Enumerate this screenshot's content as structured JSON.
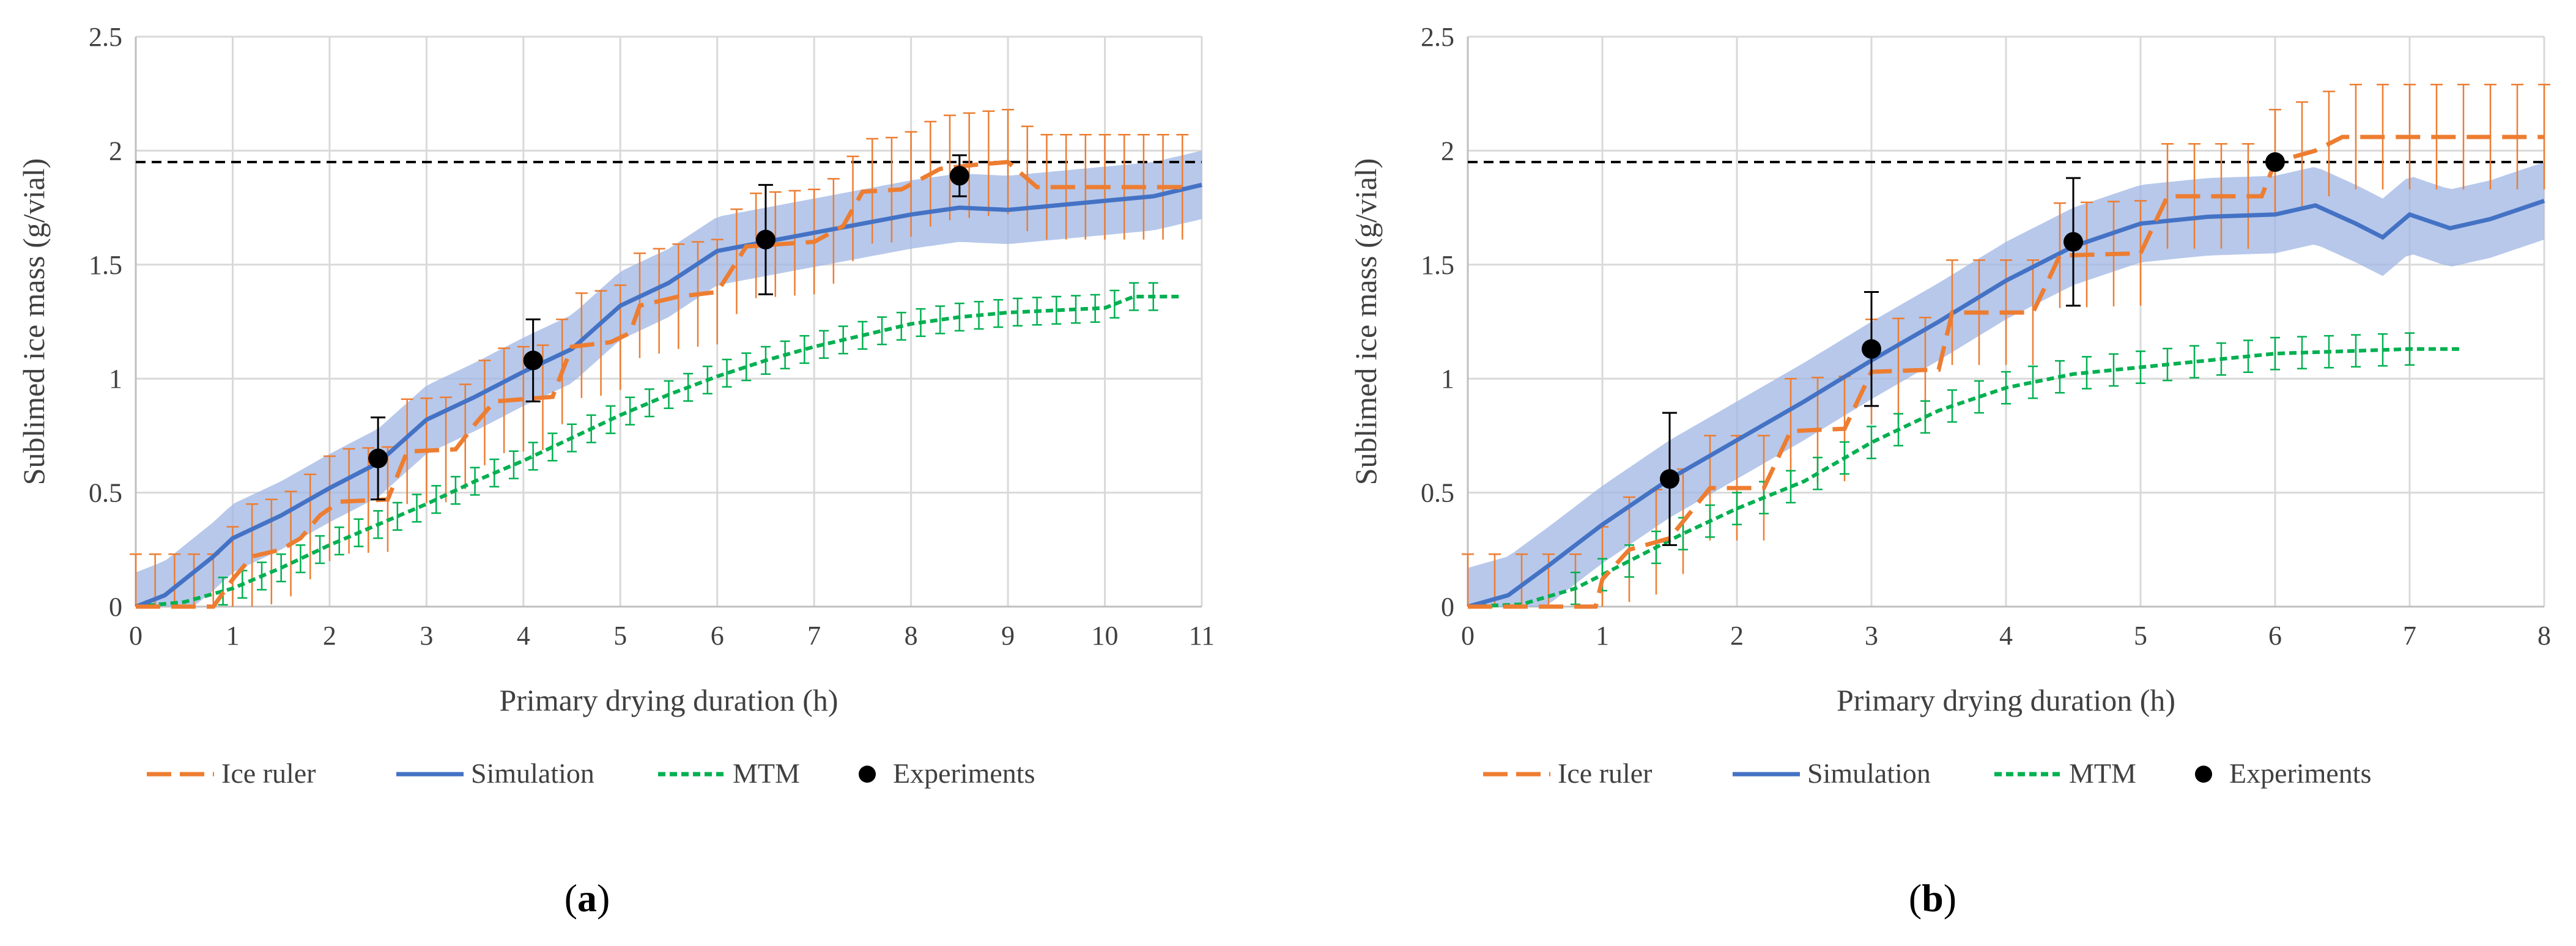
{
  "chart_data": [
    {
      "type": "line",
      "panel": "a",
      "panel_label": {
        "open": "(",
        "letter": "a",
        "close": ")"
      },
      "xlabel": "Primary drying duration (h)",
      "ylabel": "Sublimed ice mass (g/vial)",
      "xlim": [
        0,
        11
      ],
      "ylim": [
        0,
        2.5
      ],
      "x_ticks": [
        "0",
        "1",
        "2",
        "3",
        "4",
        "5",
        "6",
        "7",
        "8",
        "9",
        "10",
        "11"
      ],
      "y_ticks": [
        "0",
        "0.5",
        "1",
        "1.5",
        "2",
        "2.5"
      ],
      "grid": true,
      "reference_line": {
        "y": 1.95,
        "style": "dashed",
        "color": "#000000"
      },
      "legend": [
        {
          "name": "Ice ruler",
          "color": "#ED7D31",
          "style": "long-dash"
        },
        {
          "name": "Simulation",
          "color": "#4472C4",
          "style": "solid"
        },
        {
          "name": "MTM",
          "color": "#00B050",
          "style": "short-dash"
        },
        {
          "name": "Experiments",
          "color": "#000000",
          "style": "marker"
        }
      ],
      "series": [
        {
          "name": "Ice ruler",
          "color": "#ED7D31",
          "error": 0.23,
          "points": [
            [
              0,
              0
            ],
            [
              0.8,
              0
            ],
            [
              1.0,
              0.12
            ],
            [
              1.2,
              0.22
            ],
            [
              1.5,
              0.25
            ],
            [
              1.7,
              0.3
            ],
            [
              1.9,
              0.4
            ],
            [
              2.1,
              0.46
            ],
            [
              2.6,
              0.47
            ],
            [
              2.8,
              0.68
            ],
            [
              3.3,
              0.69
            ],
            [
              3.5,
              0.8
            ],
            [
              3.7,
              0.9
            ],
            [
              4.3,
              0.92
            ],
            [
              4.5,
              1.14
            ],
            [
              4.9,
              1.16
            ],
            [
              5.1,
              1.2
            ],
            [
              5.2,
              1.32
            ],
            [
              5.6,
              1.36
            ],
            [
              6.0,
              1.38
            ],
            [
              6.3,
              1.58
            ],
            [
              7.0,
              1.6
            ],
            [
              7.3,
              1.67
            ],
            [
              7.5,
              1.82
            ],
            [
              7.9,
              1.83
            ],
            [
              8.3,
              1.92
            ],
            [
              8.7,
              1.94
            ],
            [
              9.0,
              1.95
            ],
            [
              9.3,
              1.84
            ],
            [
              10.9,
              1.84
            ]
          ]
        },
        {
          "name": "Simulation",
          "color": "#4472C4",
          "band": 0.15,
          "points": [
            [
              0,
              0
            ],
            [
              0.3,
              0.05
            ],
            [
              0.8,
              0.22
            ],
            [
              1.0,
              0.3
            ],
            [
              1.5,
              0.4
            ],
            [
              2.0,
              0.52
            ],
            [
              2.5,
              0.63
            ],
            [
              3.0,
              0.82
            ],
            [
              3.5,
              0.92
            ],
            [
              4.0,
              1.03
            ],
            [
              4.5,
              1.13
            ],
            [
              5.0,
              1.32
            ],
            [
              5.5,
              1.42
            ],
            [
              6.0,
              1.56
            ],
            [
              6.5,
              1.6
            ],
            [
              7.0,
              1.64
            ],
            [
              7.5,
              1.68
            ],
            [
              8.0,
              1.72
            ],
            [
              8.5,
              1.75
            ],
            [
              9.0,
              1.74
            ],
            [
              9.5,
              1.76
            ],
            [
              10.0,
              1.78
            ],
            [
              10.5,
              1.8
            ],
            [
              11.0,
              1.85
            ]
          ]
        },
        {
          "name": "MTM",
          "color": "#00B050",
          "error": 0.06,
          "points": [
            [
              0,
              0
            ],
            [
              0.5,
              0.02
            ],
            [
              1.0,
              0.08
            ],
            [
              1.5,
              0.17
            ],
            [
              2.0,
              0.27
            ],
            [
              2.5,
              0.36
            ],
            [
              3.0,
              0.45
            ],
            [
              3.5,
              0.55
            ],
            [
              4.0,
              0.64
            ],
            [
              4.5,
              0.74
            ],
            [
              5.0,
              0.84
            ],
            [
              5.5,
              0.93
            ],
            [
              6.0,
              1.01
            ],
            [
              6.5,
              1.08
            ],
            [
              7.0,
              1.14
            ],
            [
              7.5,
              1.19
            ],
            [
              8.0,
              1.24
            ],
            [
              8.5,
              1.27
            ],
            [
              9.0,
              1.29
            ],
            [
              9.5,
              1.3
            ],
            [
              10.0,
              1.31
            ],
            [
              10.3,
              1.36
            ],
            [
              10.8,
              1.36
            ]
          ]
        },
        {
          "name": "Experiments",
          "color": "#000000",
          "marker": true,
          "points": [
            [
              2.5,
              0.65,
              0.18
            ],
            [
              4.1,
              1.08,
              0.18
            ],
            [
              6.5,
              1.61,
              0.24
            ],
            [
              8.5,
              1.89,
              0.09
            ]
          ]
        }
      ]
    },
    {
      "type": "line",
      "panel": "b",
      "panel_label": {
        "open": "(",
        "letter": "b",
        "close": ")"
      },
      "xlabel": "Primary drying duration (h)",
      "ylabel": "Sublimed ice mass (g/vial)",
      "xlim": [
        0,
        8
      ],
      "ylim": [
        0,
        2.5
      ],
      "x_ticks": [
        "0",
        "1",
        "2",
        "3",
        "4",
        "5",
        "6",
        "7",
        "8"
      ],
      "y_ticks": [
        "0",
        "0.5",
        "1",
        "1.5",
        "2",
        "2.5"
      ],
      "grid": true,
      "reference_line": {
        "y": 1.95,
        "style": "dashed",
        "color": "#000000"
      },
      "legend": [
        {
          "name": "Ice ruler",
          "color": "#ED7D31",
          "style": "long-dash"
        },
        {
          "name": "Simulation",
          "color": "#4472C4",
          "style": "solid"
        },
        {
          "name": "MTM",
          "color": "#00B050",
          "style": "short-dash"
        },
        {
          "name": "Experiments",
          "color": "#000000",
          "style": "marker"
        }
      ],
      "series": [
        {
          "name": "Ice ruler",
          "color": "#ED7D31",
          "error": 0.23,
          "points": [
            [
              0,
              0
            ],
            [
              0.7,
              0
            ],
            [
              0.95,
              0
            ],
            [
              1.0,
              0.12
            ],
            [
              1.2,
              0.25
            ],
            [
              1.5,
              0.3
            ],
            [
              1.8,
              0.52
            ],
            [
              2.2,
              0.52
            ],
            [
              2.4,
              0.77
            ],
            [
              2.8,
              0.78
            ],
            [
              3.0,
              1.03
            ],
            [
              3.5,
              1.04
            ],
            [
              3.6,
              1.29
            ],
            [
              4.2,
              1.29
            ],
            [
              4.4,
              1.54
            ],
            [
              5.0,
              1.55
            ],
            [
              5.2,
              1.8
            ],
            [
              5.9,
              1.8
            ],
            [
              6.0,
              1.95
            ],
            [
              6.3,
              2.0
            ],
            [
              6.5,
              2.06
            ],
            [
              8.0,
              2.06
            ]
          ]
        },
        {
          "name": "Simulation",
          "color": "#4472C4",
          "band": 0.17,
          "points": [
            [
              0,
              0
            ],
            [
              0.3,
              0.05
            ],
            [
              0.6,
              0.18
            ],
            [
              1.0,
              0.36
            ],
            [
              1.5,
              0.56
            ],
            [
              2.0,
              0.73
            ],
            [
              2.5,
              0.9
            ],
            [
              3.0,
              1.08
            ],
            [
              3.5,
              1.25
            ],
            [
              4.0,
              1.43
            ],
            [
              4.5,
              1.58
            ],
            [
              5.0,
              1.68
            ],
            [
              5.5,
              1.71
            ],
            [
              6.0,
              1.72
            ],
            [
              6.3,
              1.76
            ],
            [
              6.6,
              1.68
            ],
            [
              6.8,
              1.62
            ],
            [
              7.0,
              1.72
            ],
            [
              7.3,
              1.66
            ],
            [
              7.6,
              1.7
            ],
            [
              8.0,
              1.78
            ]
          ]
        },
        {
          "name": "MTM",
          "color": "#00B050",
          "error": 0.07,
          "points": [
            [
              0,
              0
            ],
            [
              0.4,
              0.01
            ],
            [
              0.8,
              0.08
            ],
            [
              1.2,
              0.2
            ],
            [
              1.6,
              0.32
            ],
            [
              2.0,
              0.43
            ],
            [
              2.5,
              0.55
            ],
            [
              3.0,
              0.72
            ],
            [
              3.5,
              0.86
            ],
            [
              4.0,
              0.96
            ],
            [
              4.5,
              1.02
            ],
            [
              5.0,
              1.05
            ],
            [
              5.5,
              1.08
            ],
            [
              6.0,
              1.11
            ],
            [
              6.5,
              1.12
            ],
            [
              7.0,
              1.13
            ],
            [
              7.4,
              1.13
            ]
          ]
        },
        {
          "name": "Experiments",
          "color": "#000000",
          "marker": true,
          "points": [
            [
              1.5,
              0.56,
              0.29
            ],
            [
              3.0,
              1.13,
              0.25
            ],
            [
              4.5,
              1.6,
              0.28
            ],
            [
              6.0,
              1.95,
              0
            ]
          ]
        }
      ]
    }
  ]
}
